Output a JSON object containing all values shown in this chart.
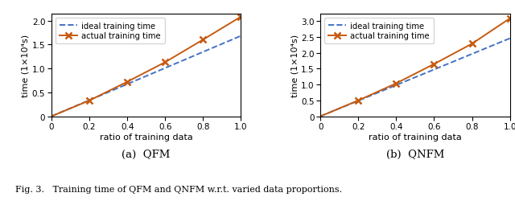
{
  "qfm": {
    "ideal_x": [
      0,
      0.2,
      0.4,
      0.6,
      0.8,
      1.0
    ],
    "ideal_y": [
      0,
      0.336,
      0.672,
      1.008,
      1.344,
      1.68
    ],
    "actual_x": [
      0,
      0.2,
      0.4,
      0.6,
      0.8,
      1.0
    ],
    "actual_y": [
      0,
      0.33,
      0.72,
      1.13,
      1.6,
      2.08
    ],
    "ylim": [
      0,
      2.15
    ],
    "yticks": [
      0,
      0.5,
      1.0,
      1.5,
      2.0
    ],
    "subtitle": "(a)  QFM"
  },
  "qnfm": {
    "ideal_x": [
      0,
      0.2,
      0.4,
      0.6,
      0.8,
      1.0
    ],
    "ideal_y": [
      0,
      0.492,
      0.984,
      1.476,
      1.968,
      2.46
    ],
    "actual_x": [
      0,
      0.2,
      0.4,
      0.6,
      0.8,
      1.0
    ],
    "actual_y": [
      0,
      0.5,
      1.04,
      1.65,
      2.29,
      3.09
    ],
    "ylim": [
      0,
      3.25
    ],
    "yticks": [
      0,
      0.5,
      1.0,
      1.5,
      2.0,
      2.5,
      3.0
    ],
    "subtitle": "(b)  QNFM"
  },
  "ideal_color": "#4472C4",
  "actual_color": "#C55A11",
  "ideal_label": "ideal training time",
  "actual_label": "actual training time",
  "xlabel": "ratio of training data",
  "ylabel": "time (1×10⁴s)",
  "caption": "Fig. 3.   Training time of QFM and QNFM w.r.t. varied data proportions.",
  "xticks": [
    0,
    0.2,
    0.4,
    0.6,
    0.8,
    1.0
  ]
}
